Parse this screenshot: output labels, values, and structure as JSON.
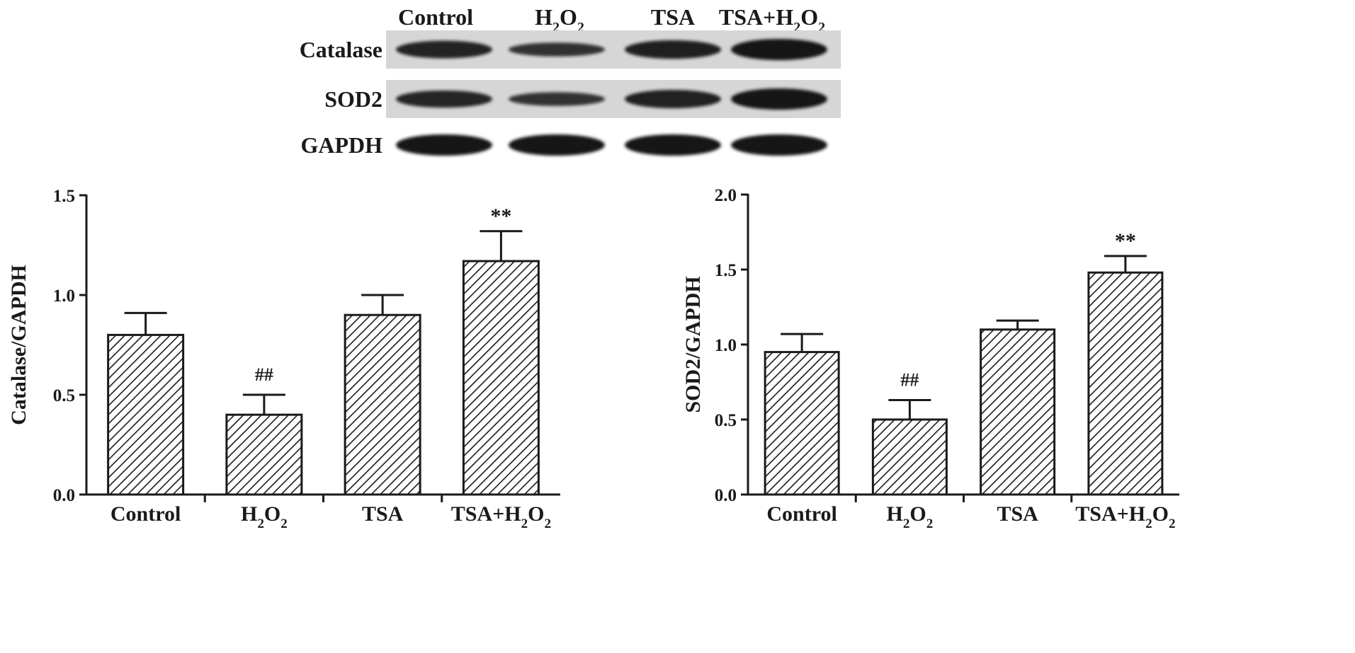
{
  "blot": {
    "lanes": [
      "Control",
      "H2O2",
      "TSA",
      "TSA+H2O2"
    ],
    "rows": [
      {
        "label": "Catalase",
        "intensity": [
          0.8,
          0.4,
          0.9,
          1.17
        ]
      },
      {
        "label": "SOD2",
        "intensity": [
          0.95,
          0.5,
          1.1,
          1.48
        ]
      },
      {
        "label": "GAPDH",
        "intensity": [
          1.0,
          1.0,
          1.0,
          1.0
        ]
      }
    ]
  },
  "chart_data": [
    {
      "type": "bar",
      "categories": [
        "Control",
        "H2O2",
        "TSA",
        "TSA+H2O2"
      ],
      "values": [
        0.8,
        0.4,
        0.9,
        1.17
      ],
      "errors": [
        0.11,
        0.1,
        0.1,
        0.15
      ],
      "annotations": [
        "",
        "##",
        "",
        "**"
      ],
      "xlabel": "",
      "ylabel": "Catalase/GAPDH",
      "ylim": [
        0,
        1.5
      ],
      "yticks": [
        "0.0",
        "0.5",
        "1.0",
        "1.5"
      ],
      "bar_fill": "diagonal-hatch",
      "grid": false
    },
    {
      "type": "bar",
      "categories": [
        "Control",
        "H2O2",
        "TSA",
        "TSA+H2O2"
      ],
      "values": [
        0.95,
        0.5,
        1.1,
        1.48
      ],
      "errors": [
        0.12,
        0.13,
        0.06,
        0.11
      ],
      "annotations": [
        "",
        "##",
        "",
        "**"
      ],
      "xlabel": "",
      "ylabel": "SOD2/GAPDH",
      "ylim": [
        0,
        2.0
      ],
      "yticks": [
        "0.0",
        "0.5",
        "1.0",
        "1.5",
        "2.0"
      ],
      "bar_fill": "diagonal-hatch",
      "grid": false
    }
  ],
  "colors": {
    "ink": "#1a1a1a",
    "bar_fill": "#ffffff",
    "blot_bg": "#d6d6d6",
    "band": "#141414"
  }
}
